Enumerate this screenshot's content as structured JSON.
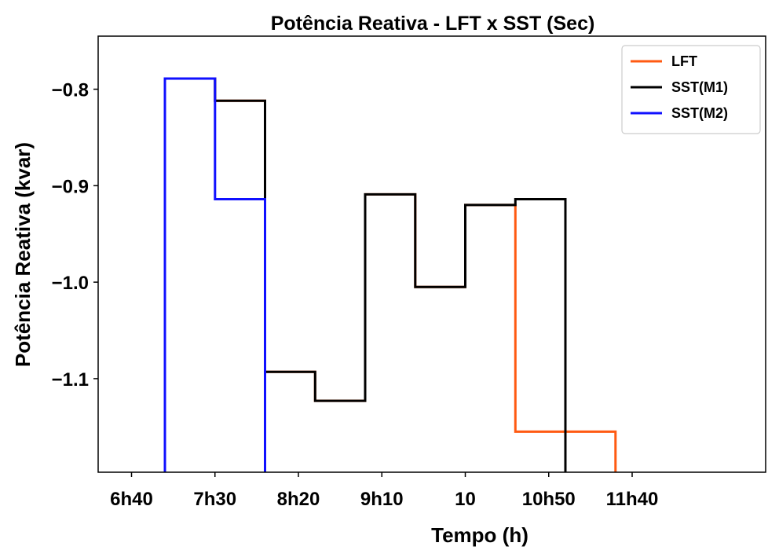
{
  "chart_data": {
    "type": "line",
    "title": "Potência Reativa - LFT x SST (Sec)",
    "xlabel": "Tempo (h)",
    "ylabel": "Potência Reativa (kvar)",
    "xlim": [
      380,
      780
    ],
    "ylim": [
      -1.197,
      -0.745
    ],
    "x_ticks": [
      {
        "value": 400,
        "label": "6h40"
      },
      {
        "value": 450,
        "label": "7h30"
      },
      {
        "value": 500,
        "label": "8h20"
      },
      {
        "value": 550,
        "label": "9h10"
      },
      {
        "value": 600,
        "label": "10"
      },
      {
        "value": 650,
        "label": "10h50"
      },
      {
        "value": 700,
        "label": "11h40"
      }
    ],
    "y_ticks": [
      {
        "value": -0.8,
        "label": "−0.8"
      },
      {
        "value": -0.9,
        "label": "−0.9"
      },
      {
        "value": -1.0,
        "label": "−1.0"
      },
      {
        "value": -1.1,
        "label": "−1.1"
      }
    ],
    "legend_position": "top-right",
    "grid": false,
    "series": [
      {
        "name": "LFT",
        "color": "#ff5a12",
        "points": [
          [
            420,
            -1.197
          ],
          [
            420,
            -0.789
          ],
          [
            450,
            -0.789
          ],
          [
            450,
            -0.812
          ],
          [
            480,
            -0.812
          ],
          [
            480,
            -1.093
          ],
          [
            510,
            -1.093
          ],
          [
            510,
            -1.123
          ],
          [
            540,
            -1.123
          ],
          [
            540,
            -0.909
          ],
          [
            570,
            -0.909
          ],
          [
            570,
            -1.005
          ],
          [
            600,
            -1.005
          ],
          [
            600,
            -0.92
          ],
          [
            630,
            -0.92
          ],
          [
            630,
            -1.155
          ],
          [
            690,
            -1.155
          ],
          [
            690,
            -1.197
          ]
        ]
      },
      {
        "name": "SST(M1)",
        "color": "#000000",
        "points": [
          [
            420,
            -1.197
          ],
          [
            420,
            -0.789
          ],
          [
            450,
            -0.789
          ],
          [
            450,
            -0.812
          ],
          [
            480,
            -0.812
          ],
          [
            480,
            -1.093
          ],
          [
            510,
            -1.093
          ],
          [
            510,
            -1.123
          ],
          [
            540,
            -1.123
          ],
          [
            540,
            -0.909
          ],
          [
            570,
            -0.909
          ],
          [
            570,
            -1.005
          ],
          [
            600,
            -1.005
          ],
          [
            600,
            -0.92
          ],
          [
            630,
            -0.92
          ],
          [
            630,
            -0.914
          ],
          [
            660,
            -0.914
          ],
          [
            660,
            -1.197
          ]
        ]
      },
      {
        "name": "SST(M2)",
        "color": "#1010ff",
        "points": [
          [
            420,
            -1.197
          ],
          [
            420,
            -0.789
          ],
          [
            450,
            -0.789
          ],
          [
            450,
            -0.914
          ],
          [
            480,
            -0.914
          ],
          [
            480,
            -1.197
          ]
        ]
      }
    ]
  }
}
